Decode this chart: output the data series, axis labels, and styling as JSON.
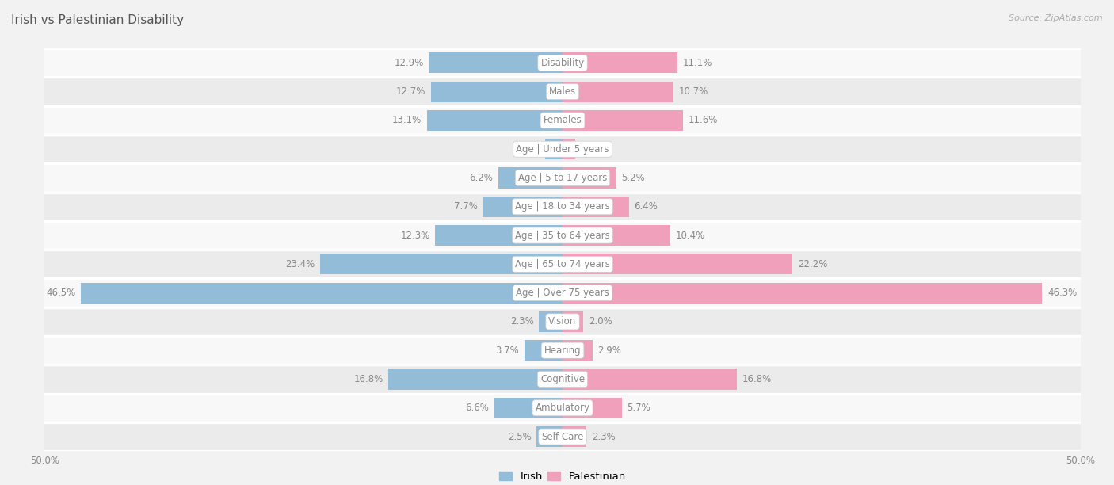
{
  "title": "Irish vs Palestinian Disability",
  "source": "Source: ZipAtlas.com",
  "categories": [
    "Disability",
    "Males",
    "Females",
    "Age | Under 5 years",
    "Age | 5 to 17 years",
    "Age | 18 to 34 years",
    "Age | 35 to 64 years",
    "Age | 65 to 74 years",
    "Age | Over 75 years",
    "Vision",
    "Hearing",
    "Cognitive",
    "Ambulatory",
    "Self-Care"
  ],
  "irish_values": [
    12.9,
    12.7,
    13.1,
    1.7,
    6.2,
    7.7,
    12.3,
    23.4,
    46.5,
    2.3,
    3.7,
    16.8,
    6.6,
    2.5
  ],
  "palestinian_values": [
    11.1,
    10.7,
    11.6,
    1.2,
    5.2,
    6.4,
    10.4,
    22.2,
    46.3,
    2.0,
    2.9,
    16.8,
    5.7,
    2.3
  ],
  "irish_color": "#92bcd8",
  "palestinian_color": "#f0a0ba",
  "bg_color": "#f2f2f2",
  "row_bg_even": "#f8f8f8",
  "row_bg_odd": "#ebebeb",
  "row_separator": "#ffffff",
  "label_box_color": "#ffffff",
  "label_text_color": "#888888",
  "value_text_color": "#888888",
  "title_color": "#555555",
  "source_color": "#aaaaaa",
  "max_value": 50.0,
  "bar_height": 0.72,
  "title_fontsize": 11,
  "label_fontsize": 8.5,
  "value_fontsize": 8.5,
  "legend_fontsize": 9.5,
  "axis_label_fontsize": 8.5
}
